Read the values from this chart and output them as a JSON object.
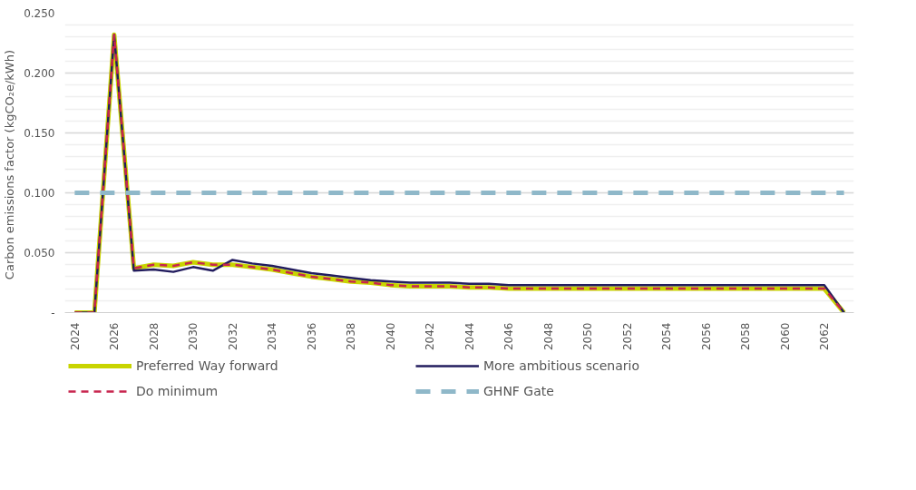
{
  "chart_data": {
    "type": "line",
    "ylabel": "Carbon emissions  factor (kgCO₂e/kWh)",
    "categories": [
      "2024",
      null,
      "2026",
      null,
      "2028",
      null,
      "2030",
      null,
      "2032",
      null,
      "2034",
      null,
      "2036",
      null,
      "2038",
      null,
      "2040",
      null,
      "2042",
      null,
      "2044",
      null,
      "2046",
      null,
      "2048",
      null,
      "2050",
      null,
      "2052",
      null,
      "2054",
      null,
      "2056",
      null,
      "2058",
      null,
      "2060",
      null,
      "2062",
      null
    ],
    "series": [
      {
        "name": "Preferred Way forward",
        "color": "#c8d400",
        "line_style": "solid",
        "values": [
          0,
          0,
          0.232,
          0.037,
          0.04,
          0.039,
          0.042,
          0.04,
          0.04,
          0.038,
          0.036,
          0.033,
          0.03,
          0.028,
          0.026,
          0.025,
          0.023,
          0.022,
          0.022,
          0.022,
          0.021,
          0.021,
          0.02,
          0.02,
          0.02,
          0.02,
          0.02,
          0.02,
          0.02,
          0.02,
          0.02,
          0.02,
          0.02,
          0.02,
          0.02,
          0.02,
          0.02,
          0.02,
          0.02,
          0
        ]
      },
      {
        "name": "More ambitious scenario",
        "color": "#221c5e",
        "line_style": "solid",
        "values": [
          0,
          0,
          0.232,
          0.035,
          0.036,
          0.034,
          0.038,
          0.035,
          0.044,
          0.041,
          0.039,
          0.036,
          0.033,
          0.031,
          0.029,
          0.027,
          0.026,
          0.025,
          0.025,
          0.025,
          0.024,
          0.024,
          0.023,
          0.023,
          0.023,
          0.023,
          0.023,
          0.023,
          0.023,
          0.023,
          0.023,
          0.023,
          0.023,
          0.023,
          0.023,
          0.023,
          0.023,
          0.023,
          0.023,
          0
        ]
      },
      {
        "name": "Do minimum",
        "color": "#c8254e",
        "line_style": "dashed",
        "values": [
          0,
          0,
          0.232,
          0.037,
          0.04,
          0.039,
          0.042,
          0.04,
          0.04,
          0.038,
          0.036,
          0.033,
          0.03,
          0.028,
          0.026,
          0.025,
          0.023,
          0.022,
          0.022,
          0.022,
          0.021,
          0.021,
          0.02,
          0.02,
          0.02,
          0.02,
          0.02,
          0.02,
          0.02,
          0.02,
          0.02,
          0.02,
          0.02,
          0.02,
          0.02,
          0.02,
          0.02,
          0.02,
          0.02,
          0
        ]
      },
      {
        "name": "GHNF Gate",
        "color": "#8fb8c9",
        "line_style": "dashed",
        "values": [
          0.1,
          0.1,
          0.1,
          0.1,
          0.1,
          0.1,
          0.1,
          0.1,
          0.1,
          0.1,
          0.1,
          0.1,
          0.1,
          0.1,
          0.1,
          0.1,
          0.1,
          0.1,
          0.1,
          0.1,
          0.1,
          0.1,
          0.1,
          0.1,
          0.1,
          0.1,
          0.1,
          0.1,
          0.1,
          0.1,
          0.1,
          0.1,
          0.1,
          0.1,
          0.1,
          0.1,
          0.1,
          0.1,
          0.1,
          0.1
        ]
      }
    ],
    "ylim": [
      0,
      0.25
    ],
    "yticks": [
      {
        "value": 0,
        "label": "-"
      },
      {
        "value": 0.05,
        "label": "0.050"
      },
      {
        "value": 0.1,
        "label": "0.100"
      },
      {
        "value": 0.15,
        "label": "0.150"
      },
      {
        "value": 0.2,
        "label": "0.200"
      },
      {
        "value": 0.25,
        "label": "0.250"
      }
    ],
    "grid": "y",
    "legend": "bottom",
    "marker": "none"
  }
}
